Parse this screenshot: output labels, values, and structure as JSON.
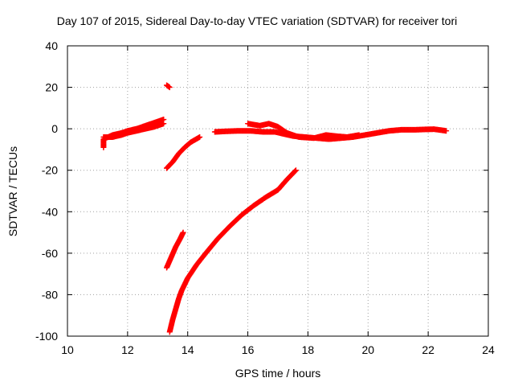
{
  "chart_data": {
    "type": "scatter",
    "title": "Day 107 of 2015, Sidereal Day-to-day VTEC variation (SDTVAR) for receiver tori",
    "xlabel": "GPS time / hours",
    "ylabel": "SDTVAR / TECUs",
    "xlim": [
      10,
      24
    ],
    "ylim": [
      -100,
      40
    ],
    "xticks": [
      10,
      12,
      14,
      16,
      18,
      20,
      22,
      24
    ],
    "yticks": [
      -100,
      -80,
      -60,
      -40,
      -20,
      0,
      20,
      40
    ],
    "grid": true,
    "marker": "plus",
    "color": "#ff0000",
    "series": [
      {
        "values": [
          [
            11.2,
            -9
          ],
          [
            11.2,
            -5
          ],
          [
            11.5,
            -3
          ],
          [
            11.8,
            -2
          ],
          [
            12.0,
            -1
          ],
          [
            12.3,
            0
          ],
          [
            12.6,
            1.5
          ],
          [
            12.8,
            2.5
          ],
          [
            13.0,
            3.5
          ],
          [
            13.2,
            4.5
          ]
        ]
      },
      {
        "values": [
          [
            11.2,
            -4
          ],
          [
            11.5,
            -4
          ],
          [
            11.8,
            -3
          ],
          [
            12.0,
            -2
          ],
          [
            12.3,
            -1
          ],
          [
            12.6,
            0
          ],
          [
            12.9,
            1
          ],
          [
            13.2,
            2.5
          ]
        ]
      },
      {
        "values": [
          [
            13.3,
            21
          ],
          [
            13.4,
            20
          ]
        ]
      },
      {
        "values": [
          [
            13.3,
            -19
          ],
          [
            13.5,
            -16
          ],
          [
            13.7,
            -12
          ],
          [
            13.9,
            -9
          ],
          [
            14.1,
            -6.5
          ],
          [
            14.4,
            -4
          ]
        ]
      },
      {
        "values": [
          [
            13.3,
            -67
          ],
          [
            13.45,
            -62
          ],
          [
            13.6,
            -57
          ],
          [
            13.75,
            -53
          ],
          [
            13.85,
            -50
          ]
        ]
      },
      {
        "values": [
          [
            13.4,
            -98
          ],
          [
            13.5,
            -92
          ],
          [
            13.6,
            -87
          ],
          [
            13.7,
            -82
          ],
          [
            13.8,
            -78
          ],
          [
            14.0,
            -72
          ],
          [
            14.3,
            -65.5
          ],
          [
            14.6,
            -60
          ],
          [
            15.0,
            -53
          ],
          [
            15.4,
            -47
          ],
          [
            15.8,
            -41.5
          ],
          [
            16.2,
            -37
          ],
          [
            16.6,
            -33
          ],
          [
            17.0,
            -29.5
          ],
          [
            17.3,
            -24.5
          ],
          [
            17.6,
            -20
          ]
        ]
      },
      {
        "values": [
          [
            14.9,
            -1.5
          ],
          [
            15.3,
            -1.2
          ],
          [
            15.7,
            -1
          ],
          [
            16.1,
            -1
          ],
          [
            16.5,
            -1.5
          ],
          [
            16.9,
            -1.5
          ],
          [
            17.2,
            -2.5
          ],
          [
            17.5,
            -3.5
          ],
          [
            17.9,
            -4
          ],
          [
            18.3,
            -4.5
          ],
          [
            18.7,
            -5
          ],
          [
            19.1,
            -4.5
          ],
          [
            19.5,
            -4
          ],
          [
            19.9,
            -3
          ],
          [
            20.3,
            -2
          ],
          [
            20.7,
            -1
          ],
          [
            21.1,
            -0.5
          ],
          [
            21.5,
            -0.5
          ],
          [
            21.9,
            -0.3
          ],
          [
            22.2,
            -0.2
          ],
          [
            22.6,
            -1
          ]
        ]
      },
      {
        "values": [
          [
            16.0,
            2.5
          ],
          [
            16.4,
            1.5
          ],
          [
            16.7,
            2.5
          ],
          [
            17.0,
            1
          ],
          [
            17.3,
            -2
          ],
          [
            17.7,
            -4
          ],
          [
            18.2,
            -4.5
          ],
          [
            18.6,
            -3
          ],
          [
            18.9,
            -3.5
          ],
          [
            19.3,
            -4
          ],
          [
            19.7,
            -3
          ]
        ]
      }
    ]
  }
}
